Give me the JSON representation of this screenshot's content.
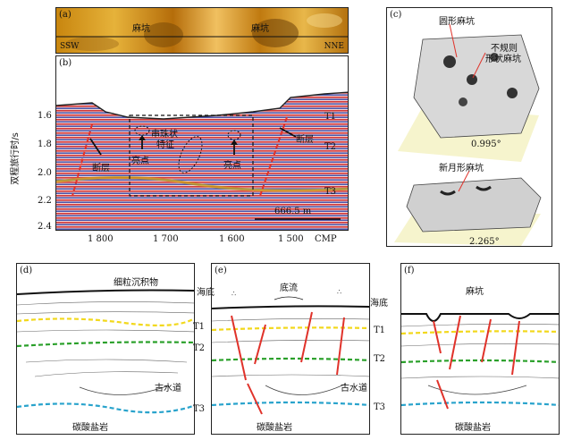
{
  "panel_a": {
    "label": "(a)",
    "pockmark1": "麻坑",
    "pockmark2": "麻坑",
    "dir_left": "SSW",
    "dir_right": "NNE"
  },
  "panel_b": {
    "label": "(b)",
    "ylabel": "双程旅行时/s",
    "yticks": [
      "1.6",
      "1.8",
      "2.0",
      "2.2",
      "2.4"
    ],
    "xticks": [
      "1 800",
      "1 700",
      "1 600",
      "1 500"
    ],
    "xaxis": "CMP",
    "horizons": [
      "T1",
      "T2",
      "T3"
    ],
    "fault_left": "断层",
    "fault_right": "断层",
    "bright1": "亮点",
    "bright2": "亮点",
    "beaded": "串珠状",
    "feature": "特征",
    "scale": "666.5 m"
  },
  "panel_c": {
    "label": "(c)",
    "round": "圆形麻坑",
    "irregular1": "不规则",
    "irregular2": "形状麻坑",
    "angle1": "0.995°",
    "crescent": "新月形麻坑",
    "angle2": "2.265°"
  },
  "panel_d": {
    "label": "(d)",
    "fine_sediment": "细粒沉积物",
    "seafloor": "海底",
    "t1": "T1",
    "t2": "T2",
    "t3": "T3",
    "paleochannel": "古水道",
    "carbonate": "碳酸盐岩"
  },
  "panel_e": {
    "label": "(e)",
    "bottom_current": "底流",
    "seafloor": "海底",
    "t1": "T1",
    "t2": "T2",
    "t3": "T3",
    "paleochannel": "古水道",
    "carbonate": "碳酸盐岩"
  },
  "panel_f": {
    "label": "(f)",
    "pockmark": "麻坑",
    "carbonate": "碳酸盐岩"
  },
  "colors": {
    "t1": "#f2d81c",
    "t2": "#2aa02a",
    "t3": "#29a3cc",
    "fault": "#e0322a"
  }
}
